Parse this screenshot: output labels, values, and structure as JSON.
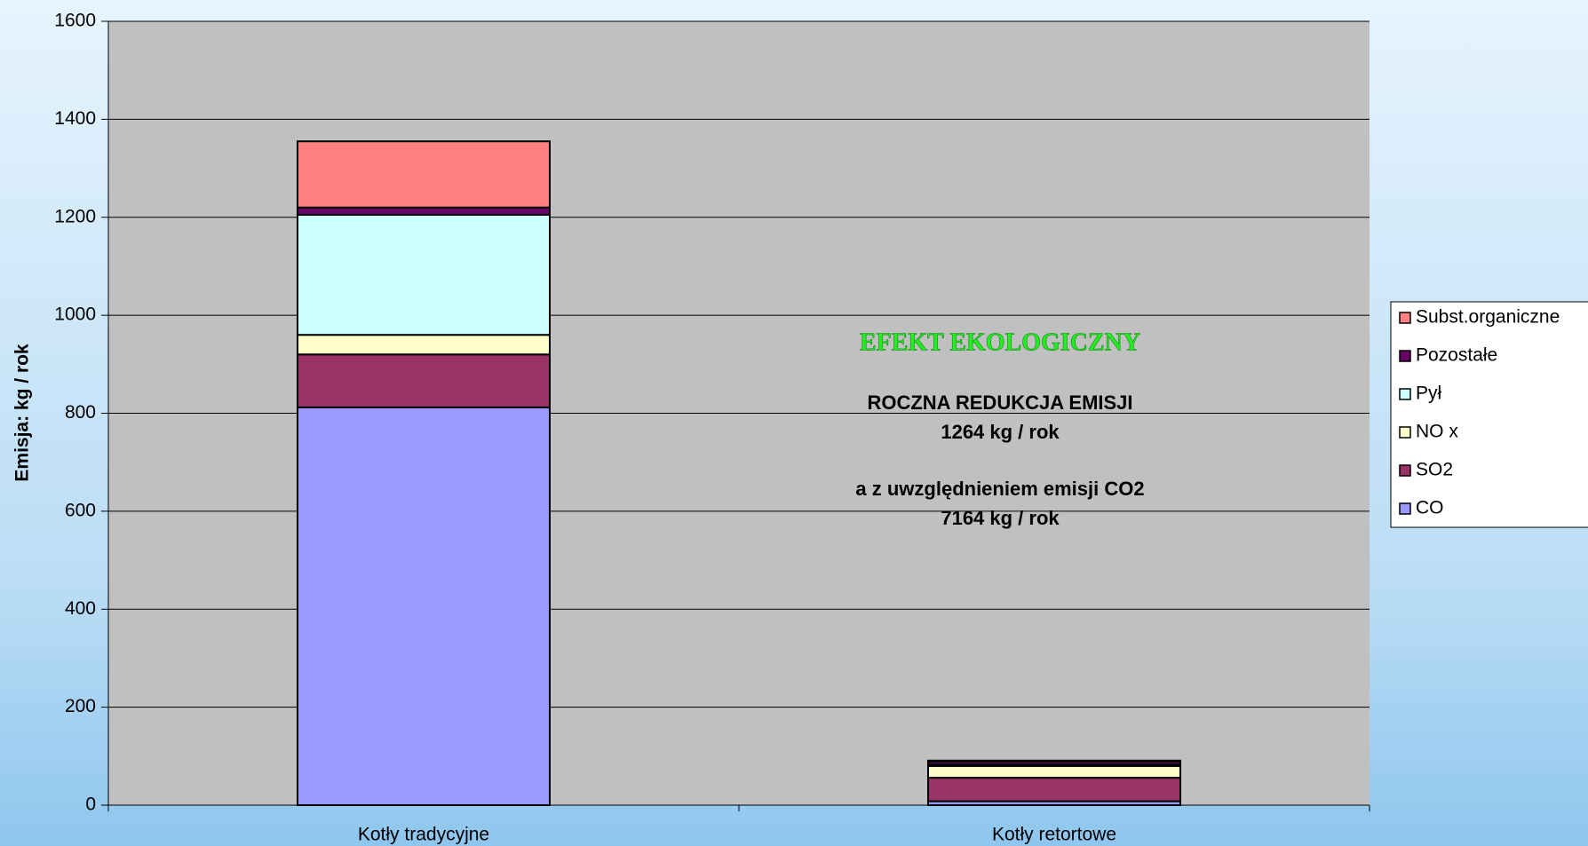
{
  "chart_data": {
    "type": "stacked_bar",
    "y_label": "Emisja: kg / rok",
    "categories": [
      "Kotły tradycyjne",
      "Kotły retortowe"
    ],
    "series": [
      {
        "name": "CO",
        "color": "#9999ff",
        "values": [
          812,
          8
        ]
      },
      {
        "name": "SO2",
        "color": "#993366",
        "values": [
          108,
          48
        ]
      },
      {
        "name": "NO x",
        "color": "#ffffcc",
        "values": [
          40,
          24
        ]
      },
      {
        "name": "Pył",
        "color": "#ccffff",
        "values": [
          245,
          3
        ]
      },
      {
        "name": "Pozostałe",
        "color": "#660066",
        "values": [
          15,
          6
        ]
      },
      {
        "name": "Subst.organiczne",
        "color": "#ff8080",
        "values": [
          135,
          2
        ]
      }
    ],
    "ylim": [
      0,
      1600
    ],
    "yticks": [
      0,
      200,
      400,
      600,
      800,
      1000,
      1200,
      1400,
      1600
    ],
    "grid": true,
    "legend": "right",
    "annotations": [
      "EFEKT EKOLOGICZNY",
      "ROCZNA REDUKCJA  EMISJI",
      "1264 kg / rok",
      "a z uwzględnieniem emisji CO2",
      "7164 kg / rok"
    ]
  }
}
